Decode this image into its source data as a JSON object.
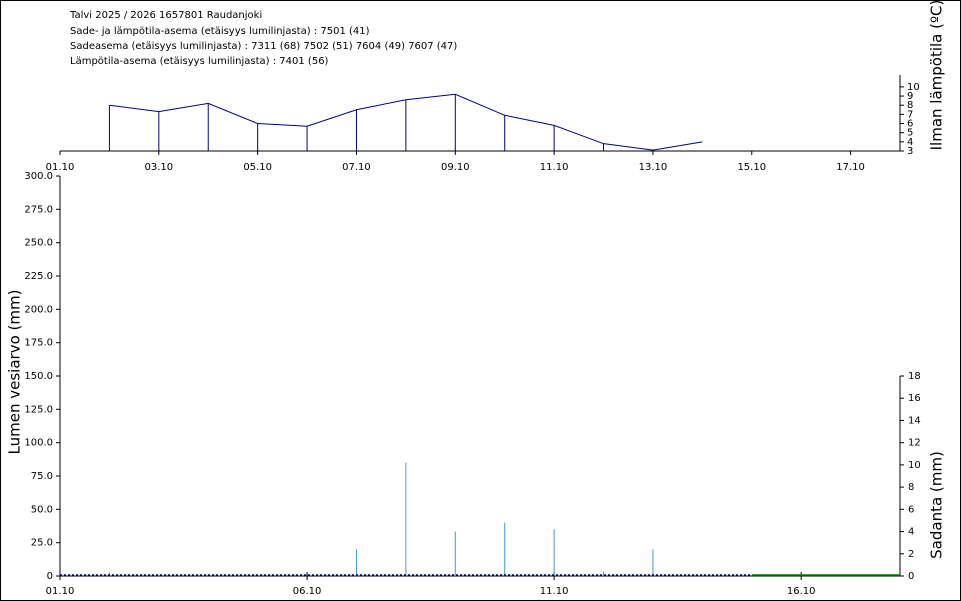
{
  "header": {
    "lines": [
      "Talvi 2025 / 2026 1657801 Raudanjoki",
      "Sade- ja lämpötila-asema (etäisyys lumilinjasta) :  7501 (41)",
      "Sadeasema (etäisyys lumilinjasta) :  7311 (68) 7502 (51) 7604 (49) 7607 (47)",
      "Lämpötila-asema (etäisyys lumilinjasta) :  7401 (56)"
    ]
  },
  "chart_data": [
    {
      "type": "line",
      "y2_label": "Ilman lämpötila (ºC)",
      "stems": true,
      "x": [
        "02.10",
        "03.10",
        "04.10",
        "05.10",
        "06.10",
        "07.10",
        "08.10",
        "09.10",
        "10.10",
        "11.10",
        "12.10",
        "13.10",
        "14.10"
      ],
      "series": [
        {
          "color": "#000080",
          "values": [
            8.0,
            7.3,
            8.2,
            6.0,
            5.7,
            7.5,
            8.6,
            9.2,
            6.9,
            5.8,
            3.8,
            3.1,
            4.0
          ]
        }
      ],
      "xlim": [
        "01.10",
        "18.10"
      ],
      "xticks": [
        "01.10",
        "03.10",
        "05.10",
        "07.10",
        "09.10",
        "11.10",
        "13.10",
        "15.10",
        "17.10"
      ],
      "y2lim": [
        3,
        11.3
      ],
      "y2ticks": [
        3,
        4,
        5,
        6,
        7,
        8,
        9,
        10
      ]
    },
    {
      "type": "bar",
      "y_label": "Lumen vesiarvo (mm)",
      "y2_label": "Sadanta (mm)",
      "xlim": [
        "01.10",
        "18.10"
      ],
      "xticks": [
        "01.10",
        "06.10",
        "11.10",
        "16.10"
      ],
      "ylim": [
        0,
        300
      ],
      "yticks": [
        0,
        {
          "value": 25,
          "label": "25.0"
        },
        {
          "value": 50,
          "label": "50.0"
        },
        {
          "value": 75,
          "label": "75.0"
        },
        {
          "value": 100,
          "label": "100.0"
        },
        {
          "value": 125,
          "label": "125.0"
        },
        {
          "value": 150,
          "label": "150.0"
        },
        {
          "value": 175,
          "label": "175.0"
        },
        {
          "value": 200,
          "label": "200.0"
        },
        {
          "value": 225,
          "label": "225.0"
        },
        {
          "value": 250,
          "label": "250.0"
        },
        {
          "value": 275,
          "label": "275.0"
        },
        {
          "value": 300,
          "label": "300.0"
        }
      ],
      "y2lim": [
        0,
        36
      ],
      "y2ticks": [
        0,
        2,
        4,
        6,
        8,
        10,
        12,
        14,
        16,
        18
      ],
      "series": [
        {
          "type": "bar",
          "axis": "y2",
          "color": "#3a9ad9",
          "x": [
            "02.10",
            "07.10",
            "08.10",
            "09.10",
            "10.10",
            "11.10",
            "12.10",
            "13.10"
          ],
          "values": [
            0.3,
            2.4,
            10.2,
            4.0,
            4.8,
            4.2,
            0.4,
            2.4
          ]
        },
        {
          "type": "line",
          "color": "#000080",
          "dashed": true,
          "x": [
            "01.10",
            "15.10"
          ],
          "values": [
            0,
            0
          ]
        },
        {
          "type": "line",
          "color": "#008000",
          "x": [
            "15.10",
            "18.10"
          ],
          "values": [
            0,
            0
          ]
        }
      ]
    }
  ]
}
